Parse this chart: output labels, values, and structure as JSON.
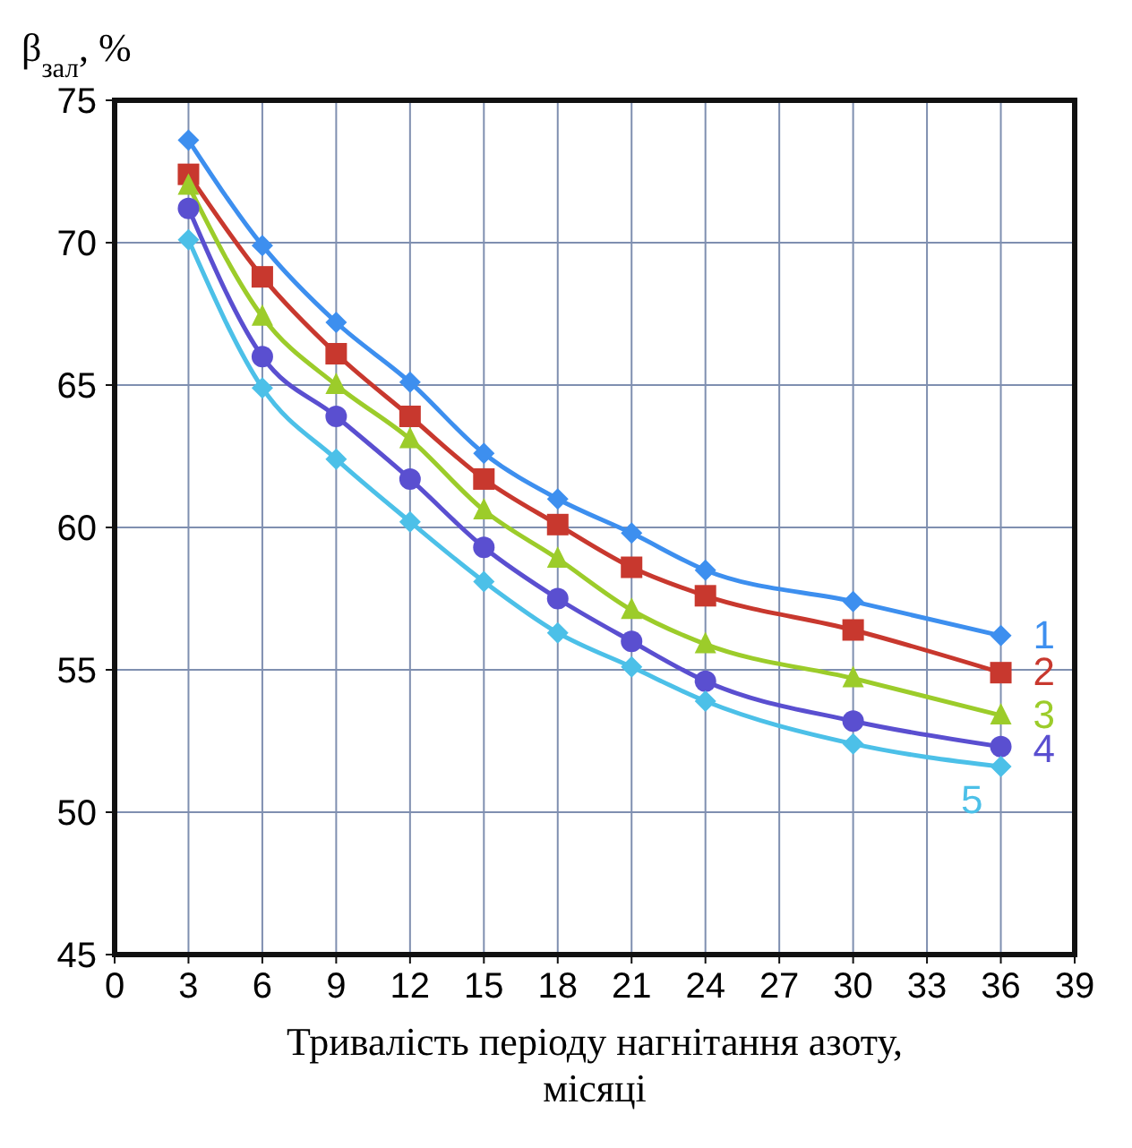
{
  "chart_data": {
    "type": "line",
    "ylabel": "β$_{зал}$, %",
    "xlabel": "Тривалість періоду нагнітання азоту, місяці",
    "x": [
      3,
      6,
      9,
      12,
      15,
      18,
      21,
      24,
      30,
      36
    ],
    "xlim": [
      0,
      39
    ],
    "xticks": [
      0,
      3,
      6,
      9,
      12,
      15,
      18,
      21,
      24,
      27,
      30,
      33,
      36,
      39
    ],
    "ylim": [
      45,
      75
    ],
    "yticks": [
      45,
      50,
      55,
      60,
      65,
      70,
      75
    ],
    "grid": true,
    "series": [
      {
        "name": "1",
        "color": "#3d8fef",
        "marker": "diamond",
        "values": [
          73.6,
          69.9,
          67.2,
          65.1,
          62.6,
          61.0,
          59.8,
          58.5,
          57.4,
          56.2
        ]
      },
      {
        "name": "2",
        "color": "#c8382e",
        "marker": "square",
        "values": [
          72.4,
          68.8,
          66.1,
          63.9,
          61.7,
          60.1,
          58.6,
          57.6,
          56.4,
          54.9
        ]
      },
      {
        "name": "3",
        "color": "#9ccc2a",
        "marker": "triangle",
        "values": [
          72.0,
          67.4,
          65.0,
          63.1,
          60.6,
          58.9,
          57.1,
          55.9,
          54.7,
          53.4
        ]
      },
      {
        "name": "4",
        "color": "#5a4fd0",
        "marker": "circle",
        "values": [
          71.2,
          66.0,
          63.9,
          61.7,
          59.3,
          57.5,
          56.0,
          54.6,
          53.2,
          52.3
        ]
      },
      {
        "name": "5",
        "color": "#4cc0e8",
        "marker": "diamond",
        "values": [
          70.1,
          64.9,
          62.4,
          60.2,
          58.1,
          56.3,
          55.1,
          53.9,
          52.4,
          51.6
        ]
      }
    ]
  }
}
